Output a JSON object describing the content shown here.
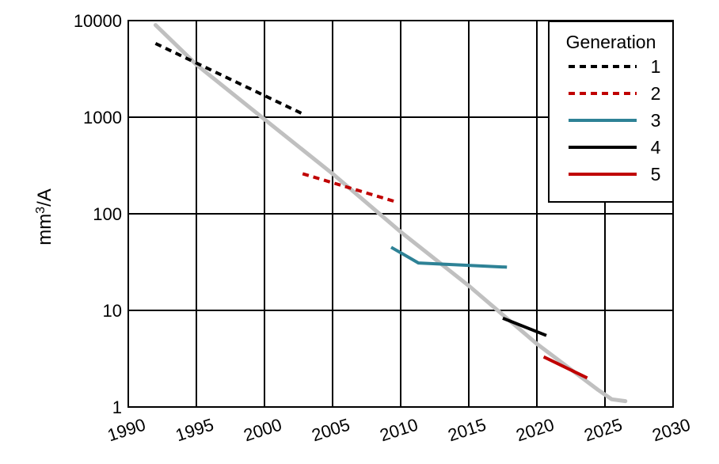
{
  "chart_data": {
    "type": "line",
    "title": "",
    "xlabel": "",
    "ylabel": "mm³/A",
    "xlim": [
      1990,
      2030
    ],
    "ylim": [
      1,
      10000
    ],
    "y_scale": "log",
    "grid": true,
    "x_ticks": [
      "1990",
      "1995",
      "2000",
      "2005",
      "2010",
      "2015",
      "2020",
      "2025",
      "2030"
    ],
    "y_ticks": [
      "1",
      "10",
      "100",
      "1000",
      "10000"
    ],
    "legend": {
      "title": "Generation",
      "position": "top-right"
    },
    "trend": {
      "color": "#c0c0c0",
      "x": [
        1992,
        1995,
        2000,
        2005,
        2010,
        2015,
        2020,
        2024.5,
        2025.5,
        2026.5
      ],
      "y": [
        9000,
        3500,
        950,
        260,
        65,
        18,
        4.5,
        1.5,
        1.2,
        1.15
      ]
    },
    "series": [
      {
        "name": "1",
        "color": "#000000",
        "dash": true,
        "x": [
          1992,
          2003
        ],
        "y": [
          5800,
          1050
        ]
      },
      {
        "name": "2",
        "color": "#c00000",
        "dash": true,
        "x": [
          2002.8,
          2009.5
        ],
        "y": [
          260,
          135
        ]
      },
      {
        "name": "3",
        "color": "#2e8296",
        "dash": false,
        "x": [
          2009.3,
          2011.3,
          2017.8
        ],
        "y": [
          45,
          31,
          28
        ]
      },
      {
        "name": "4",
        "color": "#000000",
        "dash": false,
        "x": [
          2017.5,
          2020.7
        ],
        "y": [
          8.3,
          5.5
        ]
      },
      {
        "name": "5",
        "color": "#c00000",
        "dash": false,
        "x": [
          2020.5,
          2023.7
        ],
        "y": [
          3.3,
          2.0
        ]
      }
    ]
  }
}
